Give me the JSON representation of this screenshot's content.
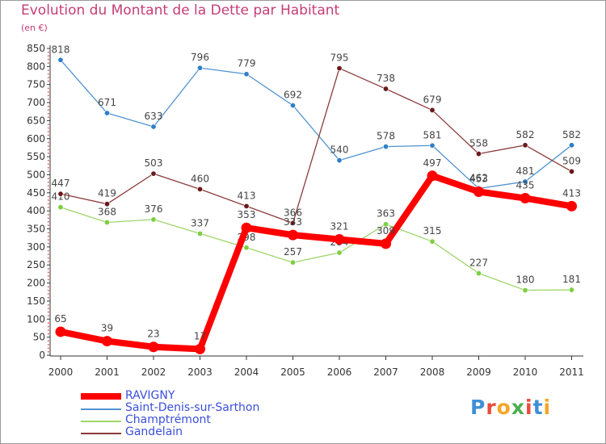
{
  "page": {
    "title": "Evolution du Montant de la Dette par Habitant",
    "unit": "(en €)",
    "logo": "Proxiti"
  },
  "chart_data": {
    "type": "line",
    "title": "Evolution du Montant de la Dette par Habitant",
    "subtitle": "(en €)",
    "xlabel": "",
    "ylabel": "",
    "x": [
      "2000",
      "2001",
      "2002",
      "2003",
      "2004",
      "2005",
      "2006",
      "2007",
      "2008",
      "2009",
      "2010",
      "2011"
    ],
    "ylim": [
      0,
      850
    ],
    "yticks": [
      0,
      50,
      100,
      150,
      200,
      250,
      300,
      350,
      400,
      450,
      500,
      550,
      600,
      650,
      700,
      750,
      800,
      850
    ],
    "grid": false,
    "legend_position": "bottom",
    "series": [
      {
        "name": "Saint-Denis-sur-Sarthon",
        "color": "#4f93d2",
        "marker": "#2f7fc9",
        "values": [
          818,
          671,
          633,
          796,
          779,
          692,
          540,
          578,
          581,
          462,
          481,
          582
        ]
      },
      {
        "name": "Champtrémont",
        "color": "#9ed66a",
        "marker": "#7ccf42",
        "values": [
          410,
          368,
          376,
          337,
          298,
          257,
          284,
          363,
          315,
          227,
          180,
          181
        ]
      },
      {
        "name": "Gandelain",
        "color": "#8b3a3a",
        "marker": "#6b1a1a",
        "values": [
          447,
          419,
          503,
          460,
          413,
          366,
          795,
          738,
          679,
          558,
          582,
          509
        ]
      },
      {
        "name": "RAVIGNY",
        "color": "#ff0000",
        "marker": "#ff0000",
        "values": [
          65,
          39,
          23,
          17,
          353,
          333,
          321,
          309,
          497,
          453,
          435,
          413
        ]
      }
    ]
  },
  "legend": {
    "items": [
      {
        "name": "RAVIGNY",
        "color": "#ff0000",
        "thick": true
      },
      {
        "name": "Saint-Denis-sur-Sarthon",
        "color": "#4f93d2",
        "thick": false
      },
      {
        "name": "Champtrémont",
        "color": "#9ed66a",
        "thick": false
      },
      {
        "name": "Gandelain",
        "color": "#8b3a3a",
        "thick": false
      }
    ]
  },
  "colors": {
    "title": "#c63c76",
    "legend_text": "#3b4fd8",
    "axis": "#333333"
  }
}
